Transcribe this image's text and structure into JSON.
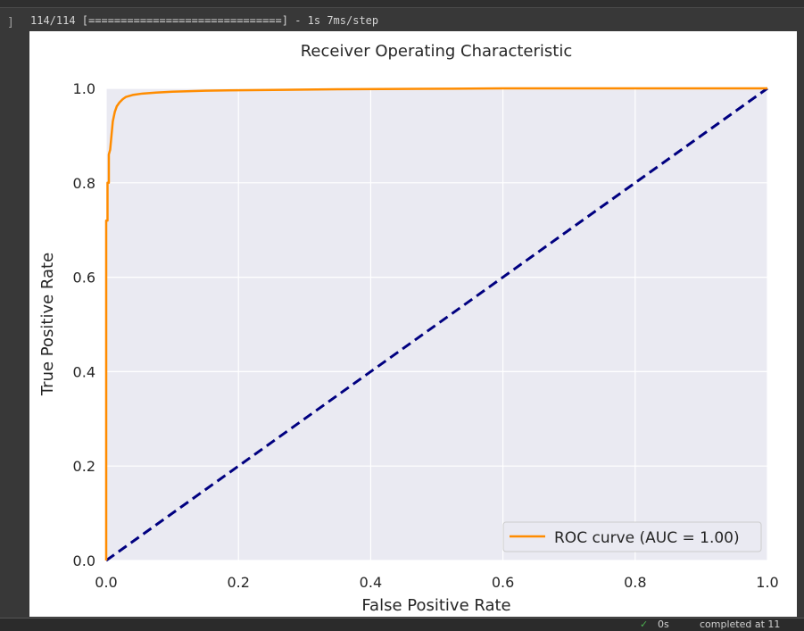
{
  "cell": {
    "bracket": "]",
    "progress_output": "114/114 [==============================] - 1s 7ms/step"
  },
  "status": {
    "check_icon": "check-icon",
    "time": "0s",
    "text": "completed at 11"
  },
  "colors": {
    "roc": "#ff8c00",
    "diagonal": "#000080",
    "plot_bg": "#eaeaf2",
    "grid": "#ffffff"
  },
  "chart_data": {
    "type": "line",
    "title": "Receiver Operating Characteristic",
    "xlabel": "False Positive Rate",
    "ylabel": "True Positive Rate",
    "xlim": [
      0.0,
      1.0
    ],
    "ylim": [
      0.0,
      1.0
    ],
    "xticks": [
      "0.0",
      "0.2",
      "0.4",
      "0.6",
      "0.8",
      "1.0"
    ],
    "yticks": [
      "0.0",
      "0.2",
      "0.4",
      "0.6",
      "0.8",
      "1.0"
    ],
    "grid": true,
    "legend_position": "lower-right",
    "series": [
      {
        "name": "ROC curve (AUC = 1.00)",
        "style": "solid",
        "x": [
          0.0,
          0.0,
          0.002,
          0.002,
          0.004,
          0.004,
          0.006,
          0.008,
          0.01,
          0.013,
          0.016,
          0.02,
          0.025,
          0.03,
          0.04,
          0.055,
          0.075,
          0.1,
          0.15,
          0.2,
          0.27,
          0.35,
          0.48,
          0.6,
          0.8,
          1.0
        ],
        "y": [
          0.0,
          0.72,
          0.72,
          0.8,
          0.8,
          0.86,
          0.87,
          0.9,
          0.93,
          0.95,
          0.962,
          0.97,
          0.977,
          0.982,
          0.986,
          0.989,
          0.991,
          0.993,
          0.995,
          0.996,
          0.997,
          0.998,
          0.999,
          1.0,
          1.0,
          1.0
        ]
      },
      {
        "style": "dashed",
        "x": [
          0.0,
          1.0
        ],
        "y": [
          0.0,
          1.0
        ]
      }
    ]
  }
}
